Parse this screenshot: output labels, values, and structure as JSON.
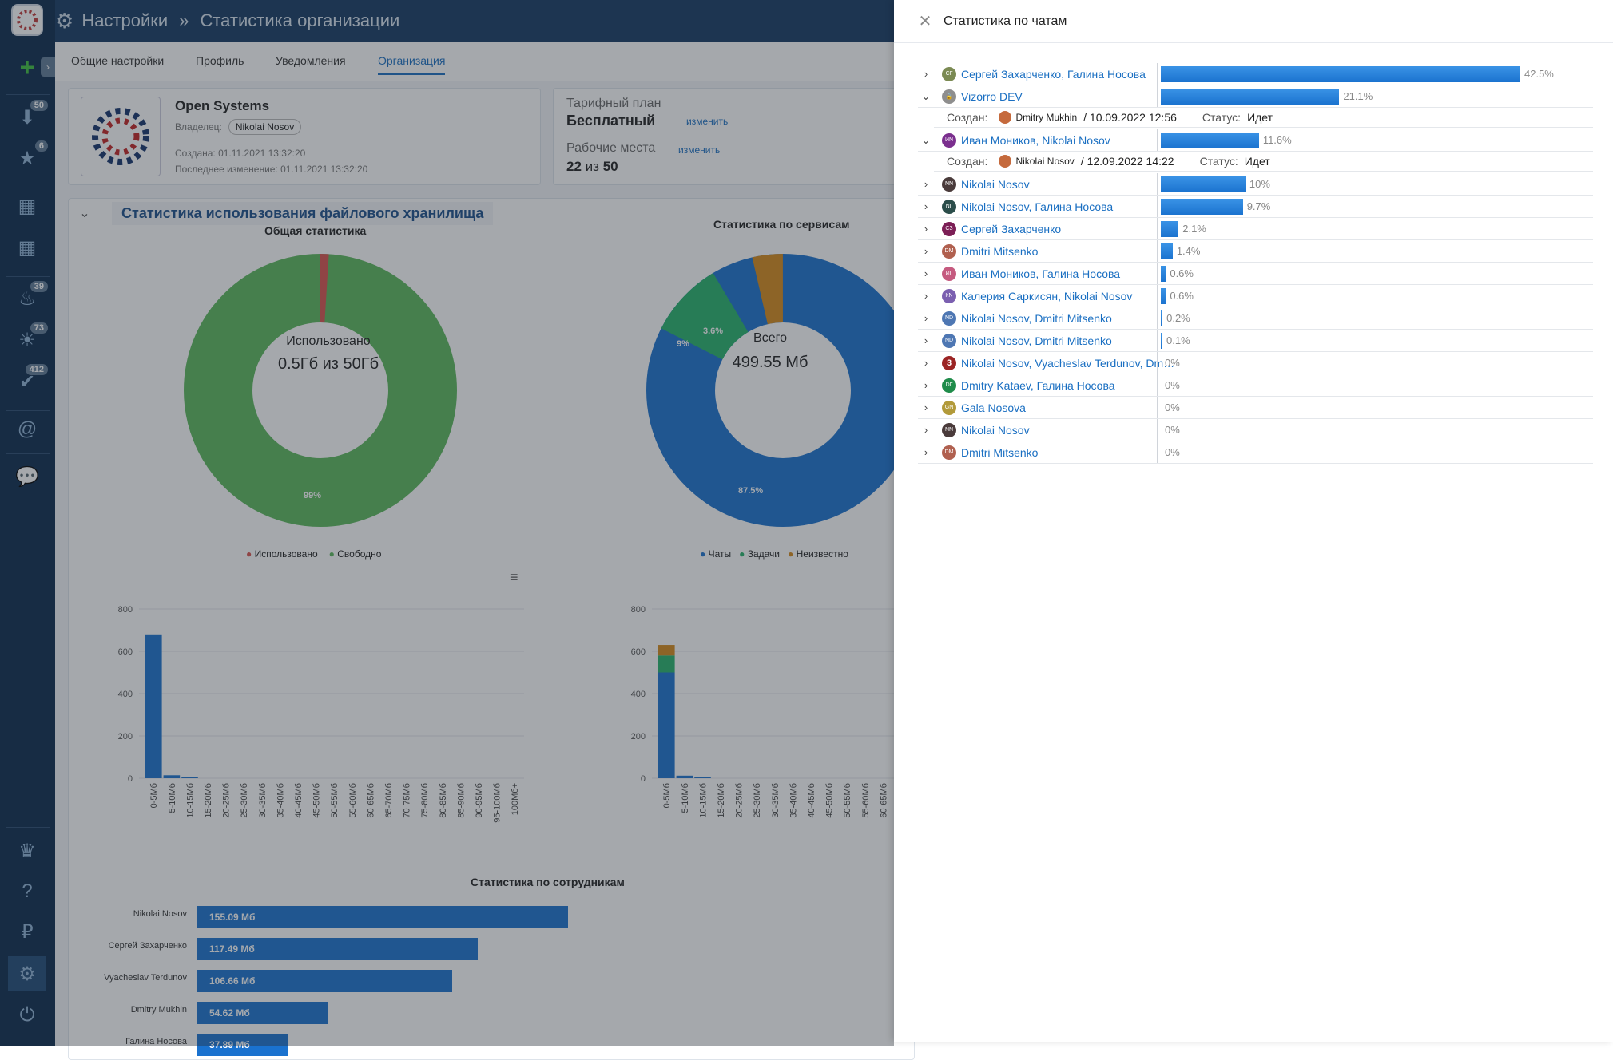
{
  "topbar": {
    "section": "Настройки",
    "separator": "»",
    "page": "Статистика организации"
  },
  "sidebar": {
    "badges": {
      "inbox": "50",
      "favorites": "6",
      "hot": "39",
      "ideas": "73",
      "tasks": "412"
    }
  },
  "tabs": [
    "Общие настройки",
    "Профиль",
    "Уведомления",
    "Организация"
  ],
  "org": {
    "name": "Open Systems",
    "owner_label": "Владелец:",
    "owner": "Nikolai Nosov",
    "created": "Создана: 01.11.2021 13:32:20",
    "modified": "Последнее изменение: 01.11.2021 13:32:20"
  },
  "plan": {
    "label": "Тарифный план",
    "value": "Бесплатный",
    "change": "изменить",
    "seats_label": "Рабочие места",
    "seats_change": "изменить",
    "seats_used": "22",
    "seats_of": "из",
    "seats_total": "50"
  },
  "storage": {
    "title": "Статистика использования файлового хранилища",
    "general": {
      "title": "Общая статистика",
      "center_label": "Использовано",
      "center_value": "0.5Гб из 50Гб",
      "slice_label": "99%",
      "legend": [
        "Использовано",
        "Свободно"
      ]
    },
    "services": {
      "title": "Статистика по сервисам",
      "center_label": "Всего",
      "center_value": "499.55 Мб",
      "labels": [
        "87.5%",
        "9%",
        "3.6%"
      ],
      "legend": [
        "Чаты",
        "Задачи",
        "Неизвестно"
      ]
    },
    "yticks": [
      "800",
      "600",
      "400",
      "200",
      "0"
    ],
    "xticks": [
      "0-5Мб",
      "5-10Мб",
      "10-15Мб",
      "15-20Мб",
      "20-25Мб",
      "25-30Мб",
      "30-35Мб",
      "35-40Мб",
      "40-45Мб",
      "45-50Мб",
      "50-55Мб",
      "55-60Мб",
      "60-65Мб",
      "65-70Мб",
      "70-75Мб",
      "75-80Мб",
      "80-85Мб",
      "85-90Мб",
      "90-95Мб",
      "95-100Мб",
      "100Мб+"
    ],
    "employees_title": "Статистика по сотрудникам",
    "employees": [
      {
        "name": "Nikolai Nosov",
        "value": "155.09 Мб"
      },
      {
        "name": "Сергей Захарченко",
        "value": "117.49 Мб"
      },
      {
        "name": "Vyacheslav Terdunov",
        "value": "106.66 Мб"
      },
      {
        "name": "Dmitry Mukhin",
        "value": "54.62 Мб"
      },
      {
        "name": "Галина Носова",
        "value": "37.89 Мб"
      }
    ]
  },
  "panel": {
    "title": "Статистика по чатам",
    "created_label": "Создан:",
    "status_label": "Статус:",
    "rows": [
      {
        "name": "Сергей Захарченко, Галина Носова",
        "pct": "42.5%",
        "avatar": "СГ",
        "color": "#7b8a53",
        "expanded": false
      },
      {
        "name": "Vizorro DEV",
        "pct": "21.1%",
        "avatar": "lock",
        "color": "#8e8e8e",
        "expanded": true,
        "creator": "Dmitry Mukhin",
        "date": "/ 10.09.2022 12:56",
        "status": "Идет"
      },
      {
        "name": "Иван Моников, Nikolai Nosov",
        "pct": "11.6%",
        "avatar": "ИN",
        "color": "#7b2f8e",
        "expanded": true,
        "creator": "Nikolai Nosov",
        "date": "/ 12.09.2022 14:22",
        "status": "Идет"
      },
      {
        "name": "Nikolai Nosov",
        "pct": "10%",
        "avatar": "NN",
        "color": "#4a3b3b",
        "expanded": false
      },
      {
        "name": "Nikolai Nosov, Галина Носова",
        "pct": "9.7%",
        "avatar": "NГ",
        "color": "#2b4d4a",
        "expanded": false
      },
      {
        "name": "Сергей Захарченко",
        "pct": "2.1%",
        "avatar": "СЗ",
        "color": "#7c1f56",
        "expanded": false
      },
      {
        "name": "Dmitri Mitsenko",
        "pct": "1.4%",
        "avatar": "DM",
        "color": "#b0604f",
        "expanded": false
      },
      {
        "name": "Иван Моников, Галина Носова",
        "pct": "0.6%",
        "avatar": "ИГ",
        "color": "#c55a7f",
        "expanded": false
      },
      {
        "name": "Калерия Саркисян, Nikolai Nosov",
        "pct": "0.6%",
        "avatar": "КN",
        "color": "#7b5fb0",
        "expanded": false
      },
      {
        "name": "Nikolai Nosov, Dmitri Mitsenko",
        "pct": "0.2%",
        "avatar": "ND",
        "color": "#4e77b3",
        "expanded": false
      },
      {
        "name": "Nikolai Nosov, Dmitri Mitsenko",
        "pct": "0.1%",
        "avatar": "ND",
        "color": "#4e77b3",
        "expanded": false
      },
      {
        "name": "Nikolai Nosov, Vyacheslav Terdunov, Dm…",
        "pct": "0%",
        "avatar": "3",
        "color": "#9b2424",
        "expanded": false
      },
      {
        "name": "Dmitry Kataev, Галина Носова",
        "pct": "0%",
        "avatar": "DГ",
        "color": "#1f8c4a",
        "expanded": false
      },
      {
        "name": "Gala Nosova",
        "pct": "0%",
        "avatar": "GN",
        "color": "#b29a3a",
        "expanded": false
      },
      {
        "name": "Nikolai Nosov",
        "pct": "0%",
        "avatar": "NN",
        "color": "#4a3b3b",
        "expanded": false
      },
      {
        "name": "Dmitri Mitsenko",
        "pct": "0%",
        "avatar": "DM",
        "color": "#b0604f",
        "expanded": false
      }
    ]
  }
}
